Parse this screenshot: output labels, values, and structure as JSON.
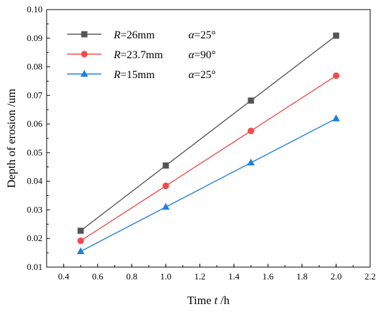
{
  "chart_data": {
    "type": "line",
    "title": "",
    "xlabel": {
      "prefix": "Time ",
      "var": "t",
      "suffix": " /h"
    },
    "ylabel": "Depth of erosion /um",
    "xlim": [
      0.3,
      2.2
    ],
    "ylim": [
      0.01,
      0.1
    ],
    "xticks": [
      "0.4",
      "0.6",
      "0.8",
      "1.0",
      "1.2",
      "1.4",
      "1.6",
      "1.8",
      "2.0",
      "2.2"
    ],
    "yticks": [
      "0.01",
      "0.02",
      "0.03",
      "0.04",
      "0.05",
      "0.06",
      "0.07",
      "0.08",
      "0.09",
      "0.10"
    ],
    "grid": false,
    "legend_position": "top-left",
    "x": [
      0.5,
      1.0,
      1.5,
      2.0
    ],
    "series": [
      {
        "label_r": "R",
        "label_mid": "=26mm",
        "label_a": "α",
        "label_end": "=25°",
        "color": "#555555",
        "marker": "square",
        "values": [
          0.0227,
          0.0455,
          0.0682,
          0.0909
        ]
      },
      {
        "label_r": "R",
        "label_mid": "=23.7mm",
        "label_a": "α",
        "label_end": "=90°",
        "color": "#f24b4b",
        "marker": "circle",
        "values": [
          0.0192,
          0.0384,
          0.0576,
          0.0769
        ]
      },
      {
        "label_r": "R",
        "label_mid": "=15mm",
        "label_a": "α",
        "label_end": "=25°",
        "color": "#1f7fe0",
        "marker": "triangle",
        "values": [
          0.0155,
          0.031,
          0.0465,
          0.0619
        ]
      }
    ]
  }
}
